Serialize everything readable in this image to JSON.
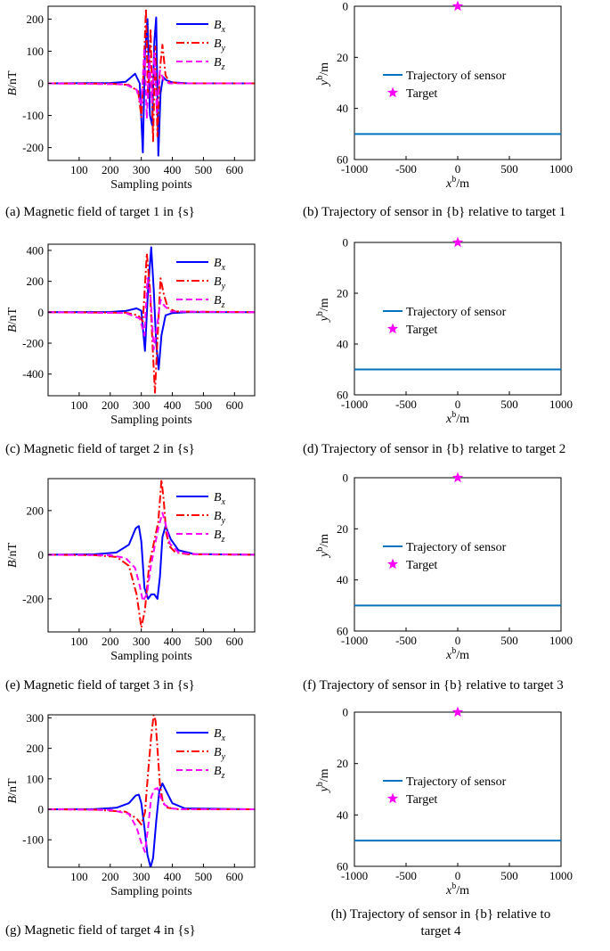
{
  "chart_data": [
    {
      "id": "a",
      "type": "line",
      "caption": "(a) Magnetic field of target 1 in {s}",
      "xlabel": "Sampling points",
      "ylabel": "B/nT",
      "xlim": [
        0,
        665
      ],
      "ylim": [
        -240,
        240
      ],
      "xticks": [
        100,
        200,
        300,
        400,
        500,
        600
      ],
      "yticks": [
        -200,
        -100,
        0,
        100,
        200
      ],
      "legend_position": "top-right",
      "series": [
        {
          "name": "Bx",
          "style": "solid",
          "color": "#0000ff",
          "x": [
            0,
            200,
            250,
            280,
            295,
            305,
            312,
            320,
            328,
            335,
            342,
            348,
            355,
            362,
            370,
            380,
            400,
            450,
            665
          ],
          "y": [
            0,
            1,
            5,
            30,
            0,
            -215,
            90,
            200,
            -100,
            -130,
            130,
            205,
            -225,
            -30,
            20,
            10,
            3,
            0,
            0
          ]
        },
        {
          "name": "By",
          "style": "dashdot",
          "color": "#ff0000",
          "x": [
            0,
            200,
            260,
            290,
            300,
            308,
            315,
            322,
            330,
            338,
            345,
            352,
            360,
            368,
            378,
            390,
            420,
            665
          ],
          "y": [
            0,
            -1,
            -5,
            -25,
            -105,
            50,
            232,
            -50,
            170,
            -180,
            115,
            -165,
            45,
            120,
            25,
            5,
            0,
            0
          ]
        },
        {
          "name": "Bz",
          "style": "dashed",
          "color": "#ff00ff",
          "x": [
            0,
            250,
            285,
            300,
            310,
            318,
            326,
            334,
            342,
            350,
            360,
            372,
            390,
            665
          ],
          "y": [
            0,
            -3,
            -20,
            -70,
            110,
            -110,
            85,
            -60,
            95,
            -90,
            40,
            10,
            0,
            0
          ]
        }
      ]
    },
    {
      "id": "b",
      "type": "line",
      "caption": "(b) Trajectory of sensor in {b} relative to target 1",
      "xlabel": "xb/m",
      "ylabel": "yb/m",
      "xlim": [
        -1000,
        1000
      ],
      "ylim": [
        0,
        60
      ],
      "y_reversed": true,
      "xticks": [
        -1000,
        -500,
        0,
        500,
        1000
      ],
      "yticks": [
        0,
        20,
        40,
        60
      ],
      "legend_position": "middle",
      "series": [
        {
          "name": "Trajectory of sensor",
          "color": "#0072bd",
          "x": [
            -1000,
            1000
          ],
          "y": [
            50,
            50
          ]
        },
        {
          "name": "Target",
          "marker": "star",
          "color": "#ff00ff",
          "x": [
            0
          ],
          "y": [
            0
          ]
        }
      ]
    },
    {
      "id": "c",
      "type": "line",
      "caption": "(c) Magnetic field of target 2 in {s}",
      "xlabel": "Sampling points",
      "ylabel": "B/nT",
      "xlim": [
        0,
        665
      ],
      "ylim": [
        -540,
        440
      ],
      "xticks": [
        100,
        200,
        300,
        400,
        500,
        600
      ],
      "yticks": [
        -400,
        -200,
        0,
        200,
        400
      ],
      "legend_position": "top-right",
      "series": [
        {
          "name": "Bx",
          "style": "solid",
          "color": "#0000ff",
          "x": [
            0,
            200,
            250,
            285,
            300,
            312,
            322,
            332,
            340,
            348,
            356,
            365,
            378,
            400,
            450,
            665
          ],
          "y": [
            0,
            2,
            8,
            25,
            10,
            -250,
            150,
            420,
            150,
            -200,
            -370,
            -150,
            -20,
            -5,
            0,
            0
          ]
        },
        {
          "name": "By",
          "style": "dashdot",
          "color": "#ff0000",
          "x": [
            0,
            250,
            290,
            305,
            318,
            328,
            336,
            344,
            352,
            362,
            372,
            385,
            410,
            665
          ],
          "y": [
            0,
            -3,
            -20,
            -60,
            380,
            150,
            -200,
            -520,
            -180,
            220,
            120,
            30,
            5,
            0
          ]
        },
        {
          "name": "Bz",
          "style": "dashed",
          "color": "#ff00ff",
          "x": [
            0,
            250,
            295,
            310,
            320,
            330,
            340,
            350,
            362,
            375,
            395,
            665
          ],
          "y": [
            0,
            -5,
            -40,
            -150,
            220,
            100,
            -240,
            -100,
            80,
            40,
            5,
            0
          ]
        }
      ]
    },
    {
      "id": "d",
      "type": "line",
      "caption": "(d) Trajectory of sensor in {b} relative to target 2",
      "xlabel": "xb/m",
      "ylabel": "yb/m",
      "xlim": [
        -1000,
        1000
      ],
      "ylim": [
        0,
        60
      ],
      "y_reversed": true,
      "xticks": [
        -1000,
        -500,
        0,
        500,
        1000
      ],
      "yticks": [
        0,
        20,
        40,
        60
      ],
      "legend_position": "middle",
      "series": [
        {
          "name": "Trajectory of sensor",
          "color": "#0072bd",
          "x": [
            -1000,
            1000
          ],
          "y": [
            50,
            50
          ]
        },
        {
          "name": "Target",
          "marker": "star",
          "color": "#ff00ff",
          "x": [
            0
          ],
          "y": [
            0
          ]
        }
      ]
    },
    {
      "id": "e",
      "type": "line",
      "caption": "(e) Magnetic field of target 3 in {s}",
      "xlabel": "Sampling points",
      "ylabel": "B/nT",
      "xlim": [
        0,
        665
      ],
      "ylim": [
        -350,
        345
      ],
      "xticks": [
        100,
        200,
        300,
        400,
        500,
        600
      ],
      "yticks": [
        -200,
        0,
        200
      ],
      "legend_position": "top-right",
      "series": [
        {
          "name": "Bx",
          "style": "solid",
          "color": "#0000ff",
          "x": [
            0,
            150,
            220,
            260,
            282,
            292,
            300,
            310,
            322,
            332,
            342,
            352,
            360,
            368,
            378,
            395,
            420,
            470,
            665
          ],
          "y": [
            0,
            2,
            10,
            45,
            120,
            130,
            60,
            -150,
            -200,
            -180,
            -180,
            -200,
            -100,
            80,
            130,
            70,
            20,
            3,
            0
          ]
        },
        {
          "name": "By",
          "style": "dashdot",
          "color": "#ff0000",
          "x": [
            0,
            150,
            220,
            260,
            285,
            300,
            312,
            325,
            340,
            355,
            365,
            372,
            380,
            390,
            410,
            450,
            665
          ],
          "y": [
            0,
            -2,
            -10,
            -50,
            -180,
            -330,
            -250,
            -50,
            50,
            150,
            340,
            250,
            100,
            40,
            10,
            2,
            0
          ]
        },
        {
          "name": "Bz",
          "style": "dashed",
          "color": "#ff00ff",
          "x": [
            0,
            200,
            250,
            280,
            295,
            305,
            318,
            330,
            342,
            355,
            368,
            378,
            392,
            420,
            480,
            665
          ],
          "y": [
            0,
            -2,
            -15,
            -60,
            -140,
            -210,
            -180,
            -60,
            30,
            120,
            190,
            140,
            50,
            10,
            2,
            0
          ]
        }
      ]
    },
    {
      "id": "f",
      "type": "line",
      "caption": "(f) Trajectory of sensor in {b} relative to target 3",
      "xlabel": "xb/m",
      "ylabel": "yb/m",
      "xlim": [
        -1000,
        1000
      ],
      "ylim": [
        0,
        60
      ],
      "y_reversed": true,
      "xticks": [
        -1000,
        -500,
        0,
        500,
        1000
      ],
      "yticks": [
        0,
        20,
        40,
        60
      ],
      "legend_position": "middle",
      "series": [
        {
          "name": "Trajectory of sensor",
          "color": "#0072bd",
          "x": [
            -1000,
            1000
          ],
          "y": [
            50,
            50
          ]
        },
        {
          "name": "Target",
          "marker": "star",
          "color": "#ff00ff",
          "x": [
            0
          ],
          "y": [
            0
          ]
        }
      ]
    },
    {
      "id": "g",
      "type": "line",
      "caption": "(g) Magnetic field of target 4 in {s}",
      "xlabel": "Sampling points",
      "ylabel": "B/nT",
      "xlim": [
        0,
        665
      ],
      "ylim": [
        -190,
        310
      ],
      "xticks": [
        100,
        200,
        300,
        400,
        500,
        600
      ],
      "yticks": [
        -100,
        0,
        100,
        200,
        300
      ],
      "legend_position": "top-right",
      "series": [
        {
          "name": "Bx",
          "style": "solid",
          "color": "#0000ff",
          "x": [
            0,
            150,
            220,
            260,
            282,
            292,
            300,
            310,
            320,
            330,
            338,
            348,
            358,
            368,
            380,
            400,
            440,
            665
          ],
          "y": [
            0,
            1,
            5,
            20,
            45,
            48,
            20,
            -60,
            -150,
            -190,
            -160,
            -40,
            60,
            85,
            60,
            20,
            3,
            0
          ]
        },
        {
          "name": "By",
          "style": "dashdot",
          "color": "#ff0000",
          "x": [
            0,
            150,
            250,
            285,
            300,
            312,
            322,
            332,
            340,
            346,
            352,
            360,
            370,
            385,
            420,
            665
          ],
          "y": [
            0,
            -1,
            -8,
            -30,
            -50,
            -10,
            120,
            240,
            310,
            290,
            200,
            80,
            20,
            5,
            0,
            0
          ]
        },
        {
          "name": "Bz",
          "style": "dashed",
          "color": "#ff00ff",
          "x": [
            0,
            200,
            260,
            285,
            300,
            312,
            322,
            332,
            342,
            352,
            362,
            375,
            395,
            430,
            665
          ],
          "y": [
            0,
            -2,
            -15,
            -60,
            -110,
            -140,
            -60,
            40,
            65,
            70,
            40,
            15,
            3,
            0,
            0
          ]
        }
      ]
    },
    {
      "id": "h",
      "type": "line",
      "caption": "(h) Trajectory of sensor in {b} relative to target 4",
      "xlabel": "xb/m",
      "ylabel": "yb/m",
      "xlim": [
        -1000,
        1000
      ],
      "ylim": [
        0,
        60
      ],
      "y_reversed": true,
      "xticks": [
        -1000,
        -500,
        0,
        500,
        1000
      ],
      "yticks": [
        0,
        20,
        40,
        60
      ],
      "legend_position": "middle",
      "series": [
        {
          "name": "Trajectory of sensor",
          "color": "#0072bd",
          "x": [
            -1000,
            1000
          ],
          "y": [
            50,
            50
          ]
        },
        {
          "name": "Target",
          "marker": "star",
          "color": "#ff00ff",
          "x": [
            0
          ],
          "y": [
            0
          ]
        }
      ]
    }
  ]
}
